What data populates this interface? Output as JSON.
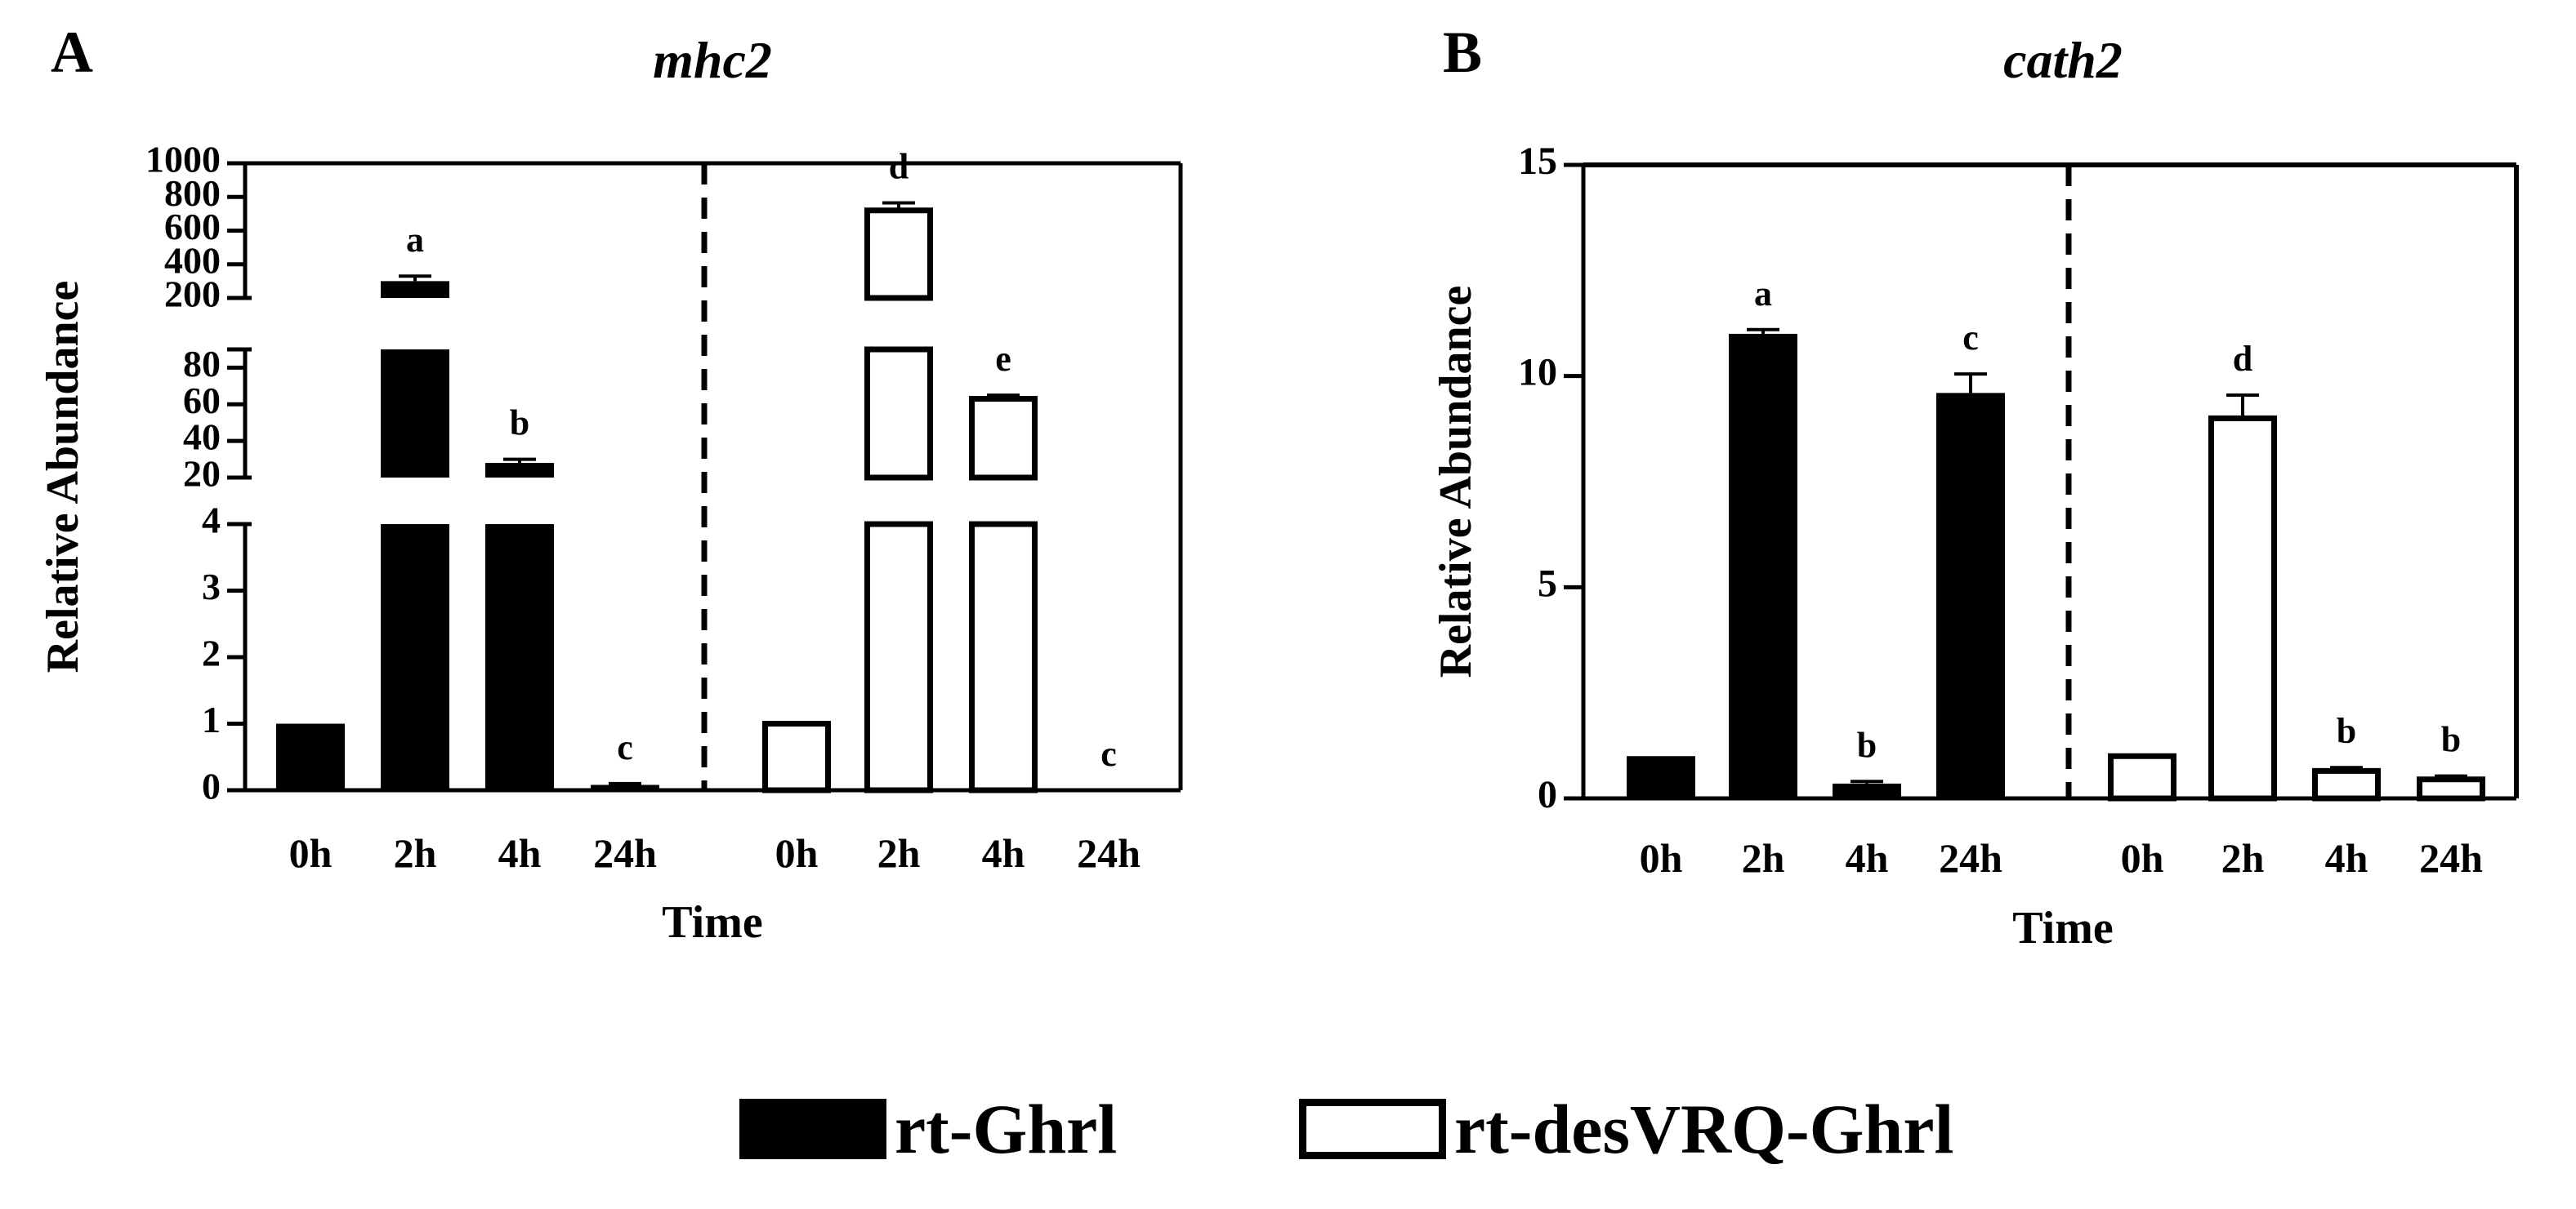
{
  "chart_data": [
    {
      "panel_label": "A",
      "type": "bar",
      "title": "mhc2",
      "xlabel": "Time",
      "ylabel": "Relative Abundance",
      "y_axis": "broken",
      "y_segments": [
        {
          "ylim": [
            0,
            4
          ],
          "ticks": [
            0,
            1,
            2,
            3,
            4
          ]
        },
        {
          "ylim": [
            20,
            90
          ],
          "ticks": [
            20,
            40,
            60,
            80
          ]
        },
        {
          "ylim": [
            200,
            1000
          ],
          "ticks": [
            200,
            400,
            600,
            800,
            1000
          ]
        }
      ],
      "categories": [
        "0h",
        "2h",
        "4h",
        "24h"
      ],
      "series": [
        {
          "name": "rt-Ghrl",
          "fill": "#000000",
          "values": [
            1,
            300,
            28,
            0.08
          ],
          "errors": [
            0,
            30,
            2,
            0.02
          ],
          "letters": [
            "",
            "a",
            "b",
            "c"
          ]
        },
        {
          "name": "rt-desVRQ-Ghrl",
          "fill": "#ffffff",
          "values": [
            1,
            720,
            63,
            0
          ],
          "errors": [
            0,
            45,
            2,
            0
          ],
          "letters": [
            "",
            "d",
            "e",
            "c"
          ]
        }
      ]
    },
    {
      "panel_label": "B",
      "type": "bar",
      "title": "cath2",
      "xlabel": "Time",
      "ylabel": "Relative Abundance",
      "ylim": [
        0,
        15
      ],
      "yticks": [
        0,
        5,
        10,
        15
      ],
      "categories": [
        "0h",
        "2h",
        "4h",
        "24h"
      ],
      "series": [
        {
          "name": "rt-Ghrl",
          "fill": "#000000",
          "values": [
            1,
            11,
            0.35,
            9.6
          ],
          "errors": [
            0,
            0.1,
            0.05,
            0.45
          ],
          "letters": [
            "",
            "a",
            "b",
            "c"
          ]
        },
        {
          "name": "rt-desVRQ-Ghrl",
          "fill": "#ffffff",
          "values": [
            1,
            9,
            0.65,
            0.45
          ],
          "errors": [
            0,
            0.55,
            0.08,
            0.08
          ],
          "letters": [
            "",
            "d",
            "b",
            "b"
          ]
        }
      ]
    }
  ],
  "legend": {
    "placement": "bottom-center",
    "items": [
      {
        "label": "rt-Ghrl",
        "fill": "#000000"
      },
      {
        "label": "rt-desVRQ-Ghrl",
        "fill": "#ffffff"
      }
    ]
  },
  "colors": {
    "ink": "#000000",
    "background": "#ffffff"
  }
}
